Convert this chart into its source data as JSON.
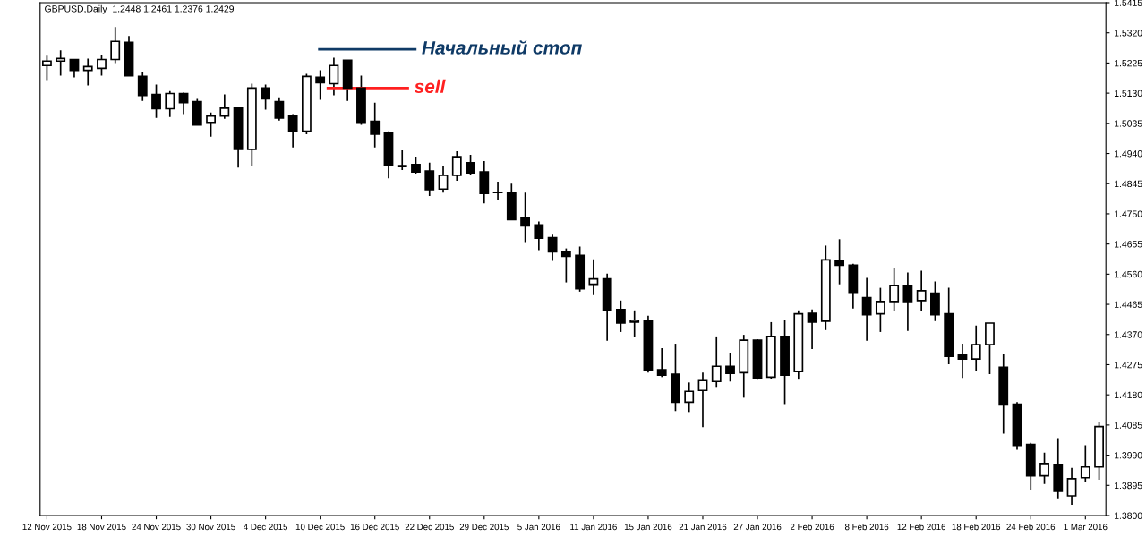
{
  "chart_data": {
    "type": "candlestick",
    "categories": [
      "12 Nov 2015",
      null,
      null,
      null,
      "18 Nov 2015",
      null,
      null,
      null,
      "24 Nov 2015",
      null,
      null,
      null,
      "30 Nov 2015",
      null,
      null,
      null,
      "4 Dec 2015",
      null,
      null,
      null,
      "10 Dec 2015",
      null,
      null,
      null,
      "16 Dec 2015",
      null,
      null,
      null,
      "22 Dec 2015",
      null,
      null,
      null,
      "29 Dec 2015",
      null,
      null,
      null,
      "5 Jan 2016",
      null,
      null,
      null,
      "11 Jan 2016",
      null,
      null,
      null,
      "15 Jan 2016",
      null,
      null,
      null,
      "21 Jan 2016",
      null,
      null,
      null,
      "27 Jan 2016",
      null,
      null,
      null,
      "2 Feb 2016",
      null,
      null,
      null,
      "8 Feb 2016",
      null,
      null,
      null,
      "12 Feb 2016",
      null,
      null,
      null,
      "18 Feb 2016",
      null,
      null,
      null,
      "24 Feb 2016",
      null,
      null,
      null,
      "1 Mar 2016",
      null
    ],
    "ohlc": [
      [
        1.5217,
        1.5248,
        1.5171,
        1.5231
      ],
      [
        1.5231,
        1.5265,
        1.5185,
        1.5239
      ],
      [
        1.5236,
        1.5236,
        1.518,
        1.5202
      ],
      [
        1.5202,
        1.5239,
        1.5154,
        1.5214
      ],
      [
        1.5208,
        1.5251,
        1.5185,
        1.5236
      ],
      [
        1.5236,
        1.5338,
        1.5225,
        1.5293
      ],
      [
        1.529,
        1.531,
        1.5185,
        1.5185
      ],
      [
        1.5183,
        1.5197,
        1.5106,
        1.5123
      ],
      [
        1.5126,
        1.5157,
        1.5052,
        1.5081
      ],
      [
        1.5081,
        1.5137,
        1.5055,
        1.5129
      ],
      [
        1.5129,
        1.5132,
        1.5064,
        1.51
      ],
      [
        1.5103,
        1.5112,
        1.503,
        1.503
      ],
      [
        1.5038,
        1.5069,
        1.4993,
        1.5058
      ],
      [
        1.5058,
        1.5126,
        1.5049,
        1.5083
      ],
      [
        1.5083,
        1.5083,
        1.4896,
        1.4953
      ],
      [
        1.4953,
        1.516,
        1.4902,
        1.5146
      ],
      [
        1.5146,
        1.5157,
        1.5078,
        1.5112
      ],
      [
        1.5103,
        1.5117,
        1.5044,
        1.5052
      ],
      [
        1.5058,
        1.5064,
        1.4959,
        1.501
      ],
      [
        1.501,
        1.5191,
        1.5001,
        1.5183
      ],
      [
        1.518,
        1.5202,
        1.5109,
        1.5163
      ],
      [
        1.516,
        1.5242,
        1.5123,
        1.5217
      ],
      [
        1.5234,
        1.5234,
        1.5106,
        1.5146
      ],
      [
        1.5146,
        1.5185,
        1.503,
        1.5038
      ],
      [
        1.5041,
        1.51,
        1.4959,
        1.5001
      ],
      [
        1.5004,
        1.501,
        1.4862,
        1.4902
      ],
      [
        1.4902,
        1.495,
        1.4888,
        1.4899
      ],
      [
        1.4905,
        1.493,
        1.4877,
        1.4882
      ],
      [
        1.4885,
        1.4911,
        1.4806,
        1.4826
      ],
      [
        1.4828,
        1.4902,
        1.4817,
        1.4871
      ],
      [
        1.4871,
        1.4947,
        1.4854,
        1.493
      ],
      [
        1.4911,
        1.4936,
        1.4874,
        1.4879
      ],
      [
        1.4882,
        1.4916,
        1.4783,
        1.4814
      ],
      [
        1.4817,
        1.4851,
        1.4792,
        1.4817
      ],
      [
        1.4817,
        1.4845,
        1.4732,
        1.4732
      ],
      [
        1.4738,
        1.4817,
        1.4661,
        1.4712
      ],
      [
        1.4715,
        1.4726,
        1.4636,
        1.4673
      ],
      [
        1.4675,
        1.4684,
        1.4602,
        1.463
      ],
      [
        1.463,
        1.4641,
        1.4534,
        1.4616
      ],
      [
        1.4619,
        1.4647,
        1.4505,
        1.4514
      ],
      [
        1.4528,
        1.4607,
        1.4494,
        1.4545
      ],
      [
        1.4545,
        1.4562,
        1.435,
        1.4446
      ],
      [
        1.4449,
        1.4477,
        1.4378,
        1.4406
      ],
      [
        1.4409,
        1.4446,
        1.4361,
        1.4415
      ],
      [
        1.4415,
        1.4429,
        1.425,
        1.4256
      ],
      [
        1.4259,
        1.4327,
        1.4236,
        1.4242
      ],
      [
        1.4245,
        1.4341,
        1.4129,
        1.4157
      ],
      [
        1.4157,
        1.4219,
        1.4126,
        1.4191
      ],
      [
        1.4194,
        1.425,
        1.4078,
        1.4225
      ],
      [
        1.4222,
        1.4364,
        1.4205,
        1.427
      ],
      [
        1.427,
        1.4313,
        1.4222,
        1.4248
      ],
      [
        1.425,
        1.4369,
        1.4171,
        1.4352
      ],
      [
        1.4352,
        1.4355,
        1.4228,
        1.4231
      ],
      [
        1.4236,
        1.4409,
        1.4231,
        1.4364
      ],
      [
        1.4364,
        1.4415,
        1.4151,
        1.4242
      ],
      [
        1.4253,
        1.4446,
        1.4228,
        1.4435
      ],
      [
        1.4437,
        1.4449,
        1.4324,
        1.4409
      ],
      [
        1.4412,
        1.465,
        1.4384,
        1.4605
      ],
      [
        1.4602,
        1.467,
        1.4528,
        1.4588
      ],
      [
        1.4588,
        1.4593,
        1.4452,
        1.4503
      ],
      [
        1.4486,
        1.4548,
        1.435,
        1.4432
      ],
      [
        1.4435,
        1.4517,
        1.4378,
        1.4474
      ],
      [
        1.4474,
        1.4579,
        1.4443,
        1.4525
      ],
      [
        1.4525,
        1.4565,
        1.4381,
        1.4474
      ],
      [
        1.4477,
        1.4571,
        1.4443,
        1.4508
      ],
      [
        1.45,
        1.4537,
        1.4412,
        1.4432
      ],
      [
        1.4435,
        1.4517,
        1.4276,
        1.4301
      ],
      [
        1.4307,
        1.4341,
        1.4233,
        1.4293
      ],
      [
        1.4293,
        1.4398,
        1.4256,
        1.4338
      ],
      [
        1.4338,
        1.4406,
        1.4245,
        1.4406
      ],
      [
        1.4267,
        1.431,
        1.4058,
        1.4148
      ],
      [
        1.4151,
        1.4157,
        1.4007,
        1.4021
      ],
      [
        1.4024,
        1.4029,
        1.3879,
        1.3925
      ],
      [
        1.3925,
        1.3998,
        1.3899,
        1.3964
      ],
      [
        1.3961,
        1.4044,
        1.3854,
        1.3876
      ],
      [
        1.3862,
        1.395,
        1.3834,
        1.3916
      ],
      [
        1.3919,
        1.4021,
        1.3905,
        1.3953
      ],
      [
        1.3953,
        1.4095,
        1.3913,
        1.408
      ]
    ],
    "ylim": [
      1.38,
      1.5415
    ],
    "yticks": [
      {
        "value": 1.5415,
        "label": "1.5415"
      },
      {
        "value": 1.532,
        "label": "1.5320"
      },
      {
        "value": 1.5225,
        "label": "1.5225"
      },
      {
        "value": 1.513,
        "label": "1.5130"
      },
      {
        "value": 1.5035,
        "label": "1.5035"
      },
      {
        "value": 1.494,
        "label": "1.4940"
      },
      {
        "value": 1.4845,
        "label": "1.4845"
      },
      {
        "value": 1.475,
        "label": "1.4750"
      },
      {
        "value": 1.4655,
        "label": "1.4655"
      },
      {
        "value": 1.456,
        "label": "1.4560"
      },
      {
        "value": 1.4465,
        "label": "1.4465"
      },
      {
        "value": 1.437,
        "label": "1.4370"
      },
      {
        "value": 1.4275,
        "label": "1.4275"
      },
      {
        "value": 1.418,
        "label": "1.4180"
      },
      {
        "value": 1.4085,
        "label": "1.4085"
      },
      {
        "value": 1.399,
        "label": "1.3990"
      },
      {
        "value": 1.3895,
        "label": "1.3895"
      },
      {
        "value": 1.38,
        "label": "1.3800"
      }
    ],
    "ref_lines": [
      {
        "axis": "y",
        "value": 1.5268,
        "label": "Начальный стоп",
        "color": "#0f3a66"
      },
      {
        "axis": "y",
        "value": 1.5146,
        "label": "sell",
        "color": "#ff2020"
      }
    ],
    "annotations": [
      "GBPUSD,Daily  1.2448 1.2461 1.2376 1.2429"
    ],
    "grid": false
  }
}
